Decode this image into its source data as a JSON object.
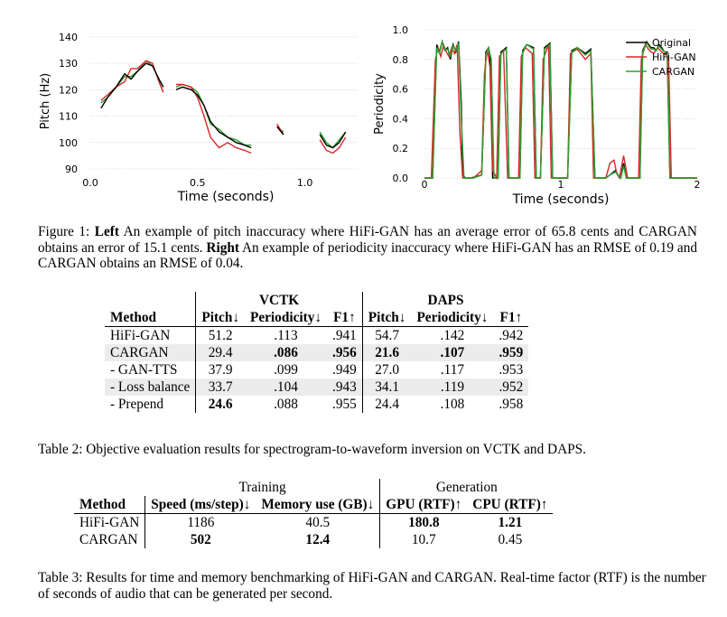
{
  "figure": {
    "left_plot": {
      "ylabel": "Pitch (Hz)",
      "xlabel": "Time (seconds)",
      "yticks": [
        "140",
        "130",
        "120",
        "110",
        "100",
        "90"
      ],
      "xticks": [
        "0.0",
        "0.5",
        "1.0"
      ]
    },
    "right_plot": {
      "ylabel": "Periodicity",
      "xlabel": "Time (seconds)",
      "yticks": [
        "1.0",
        "0.8",
        "0.6",
        "0.4",
        "0.2",
        "0.0"
      ],
      "xticks": [
        "0",
        "1",
        "2"
      ],
      "legend": [
        "Original",
        "HiFi-GAN",
        "CARGAN"
      ],
      "colors": {
        "Original": "#000000",
        "HiFi-GAN": "#d62728",
        "CARGAN": "#2ca02c"
      }
    }
  },
  "chart_data": [
    {
      "type": "line",
      "xlabel": "Time (seconds)",
      "ylabel": "Pitch (Hz)",
      "xlim": [
        0,
        1.25
      ],
      "ylim": [
        90,
        142
      ],
      "series": [
        {
          "name": "Original",
          "segments": [
            [
              [
                0.05,
                113
              ],
              [
                0.08,
                117
              ],
              [
                0.12,
                121
              ],
              [
                0.16,
                126
              ],
              [
                0.19,
                124
              ],
              [
                0.22,
                127
              ],
              [
                0.26,
                130
              ],
              [
                0.29,
                129
              ],
              [
                0.32,
                124
              ],
              [
                0.34,
                121
              ]
            ],
            [
              [
                0.4,
                120
              ],
              [
                0.43,
                121
              ],
              [
                0.47,
                120
              ],
              [
                0.5,
                118
              ],
              [
                0.53,
                114
              ],
              [
                0.56,
                108
              ],
              [
                0.6,
                104
              ],
              [
                0.64,
                102
              ],
              [
                0.68,
                100
              ],
              [
                0.72,
                99
              ],
              [
                0.75,
                98
              ]
            ],
            [
              [
                0.87,
                106
              ],
              [
                0.9,
                103
              ]
            ],
            [
              [
                1.07,
                103
              ],
              [
                1.1,
                99
              ],
              [
                1.13,
                98
              ],
              [
                1.16,
                100
              ],
              [
                1.19,
                104
              ]
            ]
          ]
        },
        {
          "name": "HiFi-GAN",
          "segments": [
            [
              [
                0.05,
                116
              ],
              [
                0.08,
                118
              ],
              [
                0.12,
                121
              ],
              [
                0.16,
                123
              ],
              [
                0.19,
                128
              ],
              [
                0.22,
                128
              ],
              [
                0.26,
                131
              ],
              [
                0.29,
                130
              ],
              [
                0.32,
                123
              ],
              [
                0.34,
                119
              ]
            ],
            [
              [
                0.4,
                122
              ],
              [
                0.43,
                122
              ],
              [
                0.47,
                121
              ],
              [
                0.5,
                117
              ],
              [
                0.53,
                110
              ],
              [
                0.56,
                102
              ],
              [
                0.6,
                98
              ],
              [
                0.64,
                100
              ],
              [
                0.68,
                98
              ],
              [
                0.72,
                97
              ],
              [
                0.75,
                96
              ]
            ],
            [
              [
                0.87,
                107
              ],
              [
                0.9,
                103
              ]
            ],
            [
              [
                1.07,
                101
              ],
              [
                1.1,
                97
              ],
              [
                1.13,
                96
              ],
              [
                1.16,
                98
              ],
              [
                1.19,
                102
              ]
            ]
          ]
        },
        {
          "name": "CARGAN",
          "segments": [
            [
              [
                0.05,
                115
              ],
              [
                0.08,
                117
              ],
              [
                0.12,
                121
              ],
              [
                0.16,
                125
              ],
              [
                0.19,
                125
              ],
              [
                0.22,
                127
              ],
              [
                0.26,
                131
              ],
              [
                0.29,
                129
              ],
              [
                0.32,
                124
              ],
              [
                0.34,
                121
              ]
            ],
            [
              [
                0.4,
                121
              ],
              [
                0.43,
                122
              ],
              [
                0.47,
                121
              ],
              [
                0.5,
                119
              ],
              [
                0.53,
                114
              ],
              [
                0.56,
                107
              ],
              [
                0.6,
                105
              ],
              [
                0.64,
                102
              ],
              [
                0.68,
                101
              ],
              [
                0.72,
                99
              ],
              [
                0.75,
                99
              ]
            ],
            [
              [
                0.87,
                106
              ],
              [
                0.9,
                104
              ]
            ],
            [
              [
                1.07,
                104
              ],
              [
                1.1,
                100
              ],
              [
                1.13,
                98
              ],
              [
                1.16,
                101
              ],
              [
                1.19,
                104
              ]
            ]
          ]
        }
      ]
    },
    {
      "type": "line",
      "xlabel": "Time (seconds)",
      "ylabel": "Periodicity",
      "xlim": [
        0,
        2
      ],
      "ylim": [
        0,
        1
      ],
      "legend": "top-right",
      "series": [
        {
          "name": "Original",
          "x": [
            0.0,
            0.06,
            0.09,
            0.11,
            0.13,
            0.15,
            0.17,
            0.19,
            0.21,
            0.23,
            0.25,
            0.27,
            0.28,
            0.3,
            0.32,
            0.34,
            0.42,
            0.45,
            0.47,
            0.48,
            0.5,
            0.54,
            0.56,
            0.6,
            0.62,
            0.65,
            0.7,
            0.72,
            0.75,
            0.8,
            0.82,
            0.85,
            0.88,
            0.92,
            0.94,
            0.97,
            1.0,
            1.05,
            1.08,
            1.12,
            1.18,
            1.22,
            1.25,
            1.28,
            1.31,
            1.33,
            1.36,
            1.4,
            1.42,
            1.44,
            1.46,
            1.48,
            1.53,
            1.58,
            1.6,
            1.63,
            1.66,
            1.68,
            1.7,
            1.72,
            1.74,
            1.76,
            1.78,
            1.8,
            2.0
          ],
          "y": [
            0.0,
            0.0,
            0.9,
            0.85,
            0.92,
            0.86,
            0.88,
            0.8,
            0.9,
            0.85,
            0.92,
            0.5,
            0.02,
            0.0,
            0.0,
            0.0,
            0.02,
            0.85,
            0.88,
            0.82,
            0.0,
            0.0,
            0.85,
            0.88,
            0.0,
            0.0,
            0.0,
            0.86,
            0.9,
            0.88,
            0.0,
            0.0,
            0.88,
            0.91,
            0.0,
            0.0,
            0.0,
            0.0,
            0.86,
            0.88,
            0.84,
            0.87,
            0.0,
            0.0,
            0.0,
            0.0,
            0.02,
            0.05,
            0.02,
            0.0,
            0.1,
            0.0,
            0.0,
            0.0,
            0.86,
            0.92,
            0.88,
            0.88,
            0.86,
            0.9,
            0.88,
            0.85,
            0.85,
            0.0,
            0.0
          ]
        },
        {
          "name": "HiFi-GAN",
          "x": [
            0.0,
            0.05,
            0.08,
            0.1,
            0.12,
            0.14,
            0.16,
            0.18,
            0.2,
            0.22,
            0.24,
            0.26,
            0.28,
            0.31,
            0.33,
            0.36,
            0.42,
            0.44,
            0.46,
            0.48,
            0.5,
            0.53,
            0.55,
            0.58,
            0.61,
            0.64,
            0.69,
            0.71,
            0.74,
            0.79,
            0.81,
            0.85,
            0.87,
            0.91,
            0.93,
            0.96,
            1.0,
            1.05,
            1.07,
            1.12,
            1.18,
            1.22,
            1.24,
            1.27,
            1.3,
            1.33,
            1.36,
            1.39,
            1.41,
            1.43,
            1.46,
            1.49,
            1.53,
            1.57,
            1.59,
            1.62,
            1.65,
            1.68,
            1.71,
            1.74,
            1.77,
            1.79,
            1.81,
            2.0
          ],
          "y": [
            0.0,
            0.0,
            0.8,
            0.88,
            0.82,
            0.9,
            0.85,
            0.82,
            0.88,
            0.84,
            0.9,
            0.3,
            0.0,
            0.0,
            0.0,
            0.0,
            0.05,
            0.7,
            0.87,
            0.75,
            0.05,
            0.0,
            0.82,
            0.86,
            0.0,
            0.0,
            0.0,
            0.82,
            0.88,
            0.84,
            0.0,
            0.0,
            0.8,
            0.9,
            0.0,
            0.0,
            0.0,
            0.0,
            0.84,
            0.87,
            0.8,
            0.84,
            0.0,
            0.0,
            0.0,
            0.0,
            0.1,
            0.12,
            0.03,
            0.0,
            0.15,
            0.0,
            0.0,
            0.0,
            0.8,
            0.9,
            0.86,
            0.84,
            0.88,
            0.85,
            0.83,
            0.82,
            0.0,
            0.0
          ]
        },
        {
          "name": "CARGAN",
          "x": [
            0.0,
            0.06,
            0.09,
            0.11,
            0.13,
            0.15,
            0.17,
            0.19,
            0.21,
            0.23,
            0.25,
            0.27,
            0.29,
            0.31,
            0.33,
            0.36,
            0.42,
            0.45,
            0.47,
            0.49,
            0.51,
            0.54,
            0.56,
            0.6,
            0.62,
            0.65,
            0.7,
            0.72,
            0.75,
            0.8,
            0.82,
            0.85,
            0.88,
            0.92,
            0.94,
            0.97,
            1.0,
            1.05,
            1.08,
            1.12,
            1.18,
            1.22,
            1.25,
            1.28,
            1.31,
            1.33,
            1.36,
            1.4,
            1.42,
            1.44,
            1.46,
            1.48,
            1.53,
            1.58,
            1.6,
            1.63,
            1.66,
            1.68,
            1.7,
            1.72,
            1.74,
            1.76,
            1.78,
            1.8,
            2.0
          ],
          "y": [
            0.0,
            0.0,
            0.88,
            0.84,
            0.92,
            0.86,
            0.87,
            0.82,
            0.89,
            0.86,
            0.91,
            0.4,
            0.0,
            0.0,
            0.0,
            0.0,
            0.02,
            0.83,
            0.88,
            0.8,
            0.0,
            0.0,
            0.84,
            0.87,
            0.0,
            0.0,
            0.0,
            0.85,
            0.9,
            0.87,
            0.0,
            0.0,
            0.87,
            0.9,
            0.0,
            0.0,
            0.0,
            0.0,
            0.85,
            0.88,
            0.83,
            0.86,
            0.0,
            0.0,
            0.0,
            0.0,
            0.02,
            0.04,
            0.02,
            0.0,
            0.08,
            0.0,
            0.0,
            0.0,
            0.85,
            0.91,
            0.87,
            0.87,
            0.86,
            0.89,
            0.87,
            0.85,
            0.84,
            0.0,
            0.0
          ]
        }
      ]
    }
  ],
  "figure_caption": {
    "prefix": "Figure 1: ",
    "left_label": "Left",
    "left_text": " An example of pitch inaccuracy where HiFi-GAN has an average error of 65.8 cents and CARGAN obtains an error of 15.1 cents. ",
    "right_label": "Right",
    "right_text": " An example of periodicity inaccuracy where HiFi-GAN has an RMSE of 0.19 and CARGAN obtains an RMSE of 0.04."
  },
  "table2": {
    "group_vctk": "VCTK",
    "group_daps": "DAPS",
    "headers": [
      "Method",
      "Pitch↓",
      "Periodicity↓",
      "F1↑",
      "Pitch↓",
      "Periodicity↓",
      "F1↑"
    ],
    "rows": [
      [
        "HiFi-GAN",
        "51.2",
        ".113",
        ".941",
        "54.7",
        ".142",
        ".942"
      ],
      [
        "CARGAN",
        "29.4",
        ".086",
        ".956",
        "21.6",
        ".107",
        ".959"
      ],
      [
        "- GAN-TTS",
        "37.9",
        ".099",
        ".949",
        "27.0",
        ".117",
        ".953"
      ],
      [
        "- Loss balance",
        "33.7",
        ".104",
        ".943",
        "34.1",
        ".119",
        ".952"
      ],
      [
        "- Prepend",
        "24.6",
        ".088",
        ".955",
        "24.4",
        ".108",
        ".958"
      ]
    ],
    "caption": "Table 2: Objective evaluation results for spectrogram-to-waveform inversion on VCTK and DAPS."
  },
  "table3": {
    "group_training": "Training",
    "group_generation": "Generation",
    "headers": [
      "Method",
      "Speed (ms/step)↓",
      "Memory use (GB)↓",
      "GPU (RTF)↑",
      "CPU (RTF)↑"
    ],
    "rows": [
      [
        "HiFi-GAN",
        "1186",
        "40.5",
        "180.8",
        "1.21"
      ],
      [
        "CARGAN",
        "502",
        "12.4",
        "10.7",
        "0.45"
      ]
    ],
    "caption": "Table 3: Results for time and memory benchmarking of HiFi-GAN and CARGAN. Real-time factor (RTF) is the number of seconds of audio that can be generated per second."
  }
}
